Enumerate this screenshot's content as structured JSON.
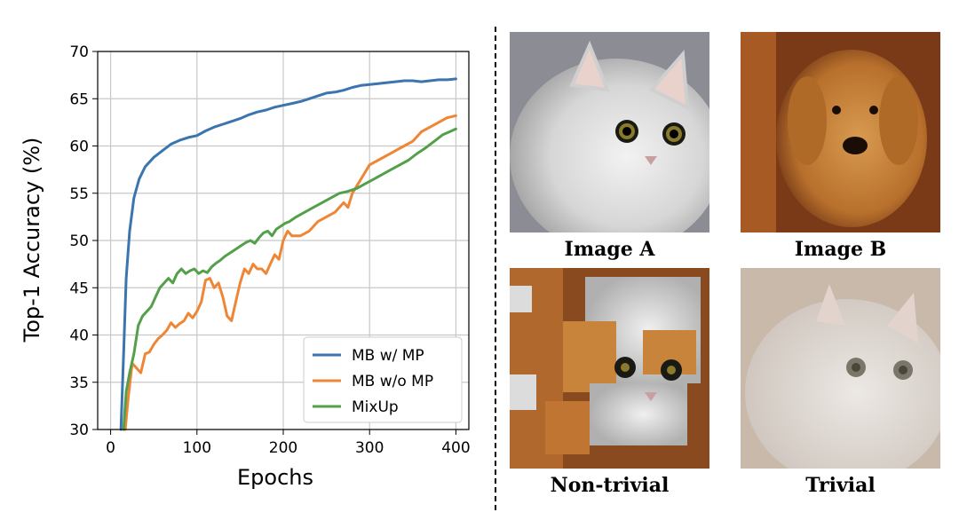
{
  "chart_data": {
    "type": "line",
    "xlabel": "Epochs",
    "ylabel": "Top-1 Accuracy (%)",
    "xlim": [
      -15,
      415
    ],
    "ylim": [
      30,
      70
    ],
    "xticks": [
      0,
      100,
      200,
      300,
      400
    ],
    "yticks": [
      30,
      35,
      40,
      45,
      50,
      55,
      60,
      65,
      70
    ],
    "grid": true,
    "legend_position": "lower-right",
    "series": [
      {
        "name": "MB w/ MP",
        "color": "#3b75af",
        "x": [
          12,
          15,
          18,
          22,
          27,
          33,
          40,
          50,
          60,
          70,
          80,
          90,
          100,
          110,
          120,
          130,
          140,
          150,
          160,
          170,
          180,
          190,
          200,
          210,
          220,
          230,
          240,
          250,
          260,
          270,
          280,
          290,
          300,
          310,
          320,
          330,
          340,
          350,
          360,
          370,
          380,
          390,
          400
        ],
        "y": [
          30,
          38,
          46,
          51,
          54.5,
          56.5,
          57.8,
          58.8,
          59.5,
          60.2,
          60.6,
          60.9,
          61.1,
          61.6,
          62.0,
          62.3,
          62.6,
          62.9,
          63.3,
          63.6,
          63.8,
          64.1,
          64.3,
          64.5,
          64.7,
          65.0,
          65.3,
          65.6,
          65.7,
          65.9,
          66.2,
          66.4,
          66.5,
          66.6,
          66.7,
          66.8,
          66.9,
          66.9,
          66.8,
          66.9,
          67.0,
          67.0,
          67.1
        ]
      },
      {
        "name": "MB w/o MP",
        "color": "#ef8636",
        "x": [
          17,
          20,
          25,
          30,
          35,
          40,
          45,
          50,
          55,
          60,
          65,
          70,
          75,
          80,
          85,
          90,
          95,
          100,
          105,
          110,
          115,
          120,
          125,
          130,
          135,
          140,
          145,
          150,
          155,
          160,
          165,
          170,
          175,
          180,
          185,
          190,
          195,
          200,
          205,
          210,
          220,
          230,
          240,
          250,
          260,
          270,
          275,
          280,
          290,
          300,
          310,
          320,
          330,
          340,
          350,
          360,
          370,
          380,
          390,
          400
        ],
        "y": [
          30,
          33,
          37,
          36.5,
          36,
          38,
          38.2,
          39,
          39.6,
          40,
          40.5,
          41.3,
          40.8,
          41.2,
          41.5,
          42.3,
          41.8,
          42.5,
          43.5,
          45.8,
          46.0,
          45.0,
          45.5,
          44.0,
          42.0,
          41.5,
          43.5,
          45.5,
          47.0,
          46.5,
          47.5,
          47.0,
          47.0,
          46.5,
          47.5,
          48.5,
          48.0,
          50.0,
          51.0,
          50.5,
          50.5,
          51.0,
          52.0,
          52.5,
          53.0,
          54.0,
          53.5,
          55.0,
          56.5,
          58.0,
          58.5,
          59.0,
          59.5,
          60.0,
          60.5,
          61.5,
          62.0,
          62.5,
          63.0,
          63.2
        ]
      },
      {
        "name": "MixUp",
        "color": "#54a04a",
        "x": [
          15,
          18,
          22,
          27,
          32,
          37,
          42,
          47,
          52,
          57,
          62,
          67,
          72,
          77,
          82,
          87,
          92,
          97,
          102,
          107,
          112,
          117,
          122,
          127,
          132,
          137,
          142,
          147,
          152,
          157,
          162,
          167,
          172,
          177,
          182,
          187,
          192,
          197,
          202,
          207,
          215,
          225,
          235,
          245,
          255,
          265,
          275,
          285,
          295,
          305,
          315,
          325,
          335,
          345,
          355,
          365,
          375,
          385,
          395,
          400
        ],
        "y": [
          30,
          34,
          36,
          38,
          41,
          42,
          42.5,
          43,
          44,
          45,
          45.5,
          46,
          45.5,
          46.5,
          47,
          46.5,
          46.8,
          47,
          46.5,
          46.8,
          46.6,
          47.2,
          47.6,
          47.9,
          48.3,
          48.6,
          48.9,
          49.2,
          49.5,
          49.8,
          50.0,
          49.7,
          50.3,
          50.8,
          51.0,
          50.5,
          51.2,
          51.5,
          51.8,
          52.0,
          52.5,
          53.0,
          53.5,
          54.0,
          54.5,
          55.0,
          55.2,
          55.5,
          56.0,
          56.5,
          57.0,
          57.5,
          58.0,
          58.5,
          59.2,
          59.8,
          60.5,
          61.2,
          61.6,
          61.8
        ]
      }
    ]
  },
  "panels": {
    "image_a": {
      "caption": "Image A"
    },
    "image_b": {
      "caption": "Image B"
    },
    "non_trivial": {
      "caption": "Non-trivial"
    },
    "trivial": {
      "caption": "Trivial"
    }
  },
  "colors": {
    "cat_fur": "#dcdcdc",
    "dog_fur": "#c8843a",
    "wood_bg": "#7a3a18"
  }
}
